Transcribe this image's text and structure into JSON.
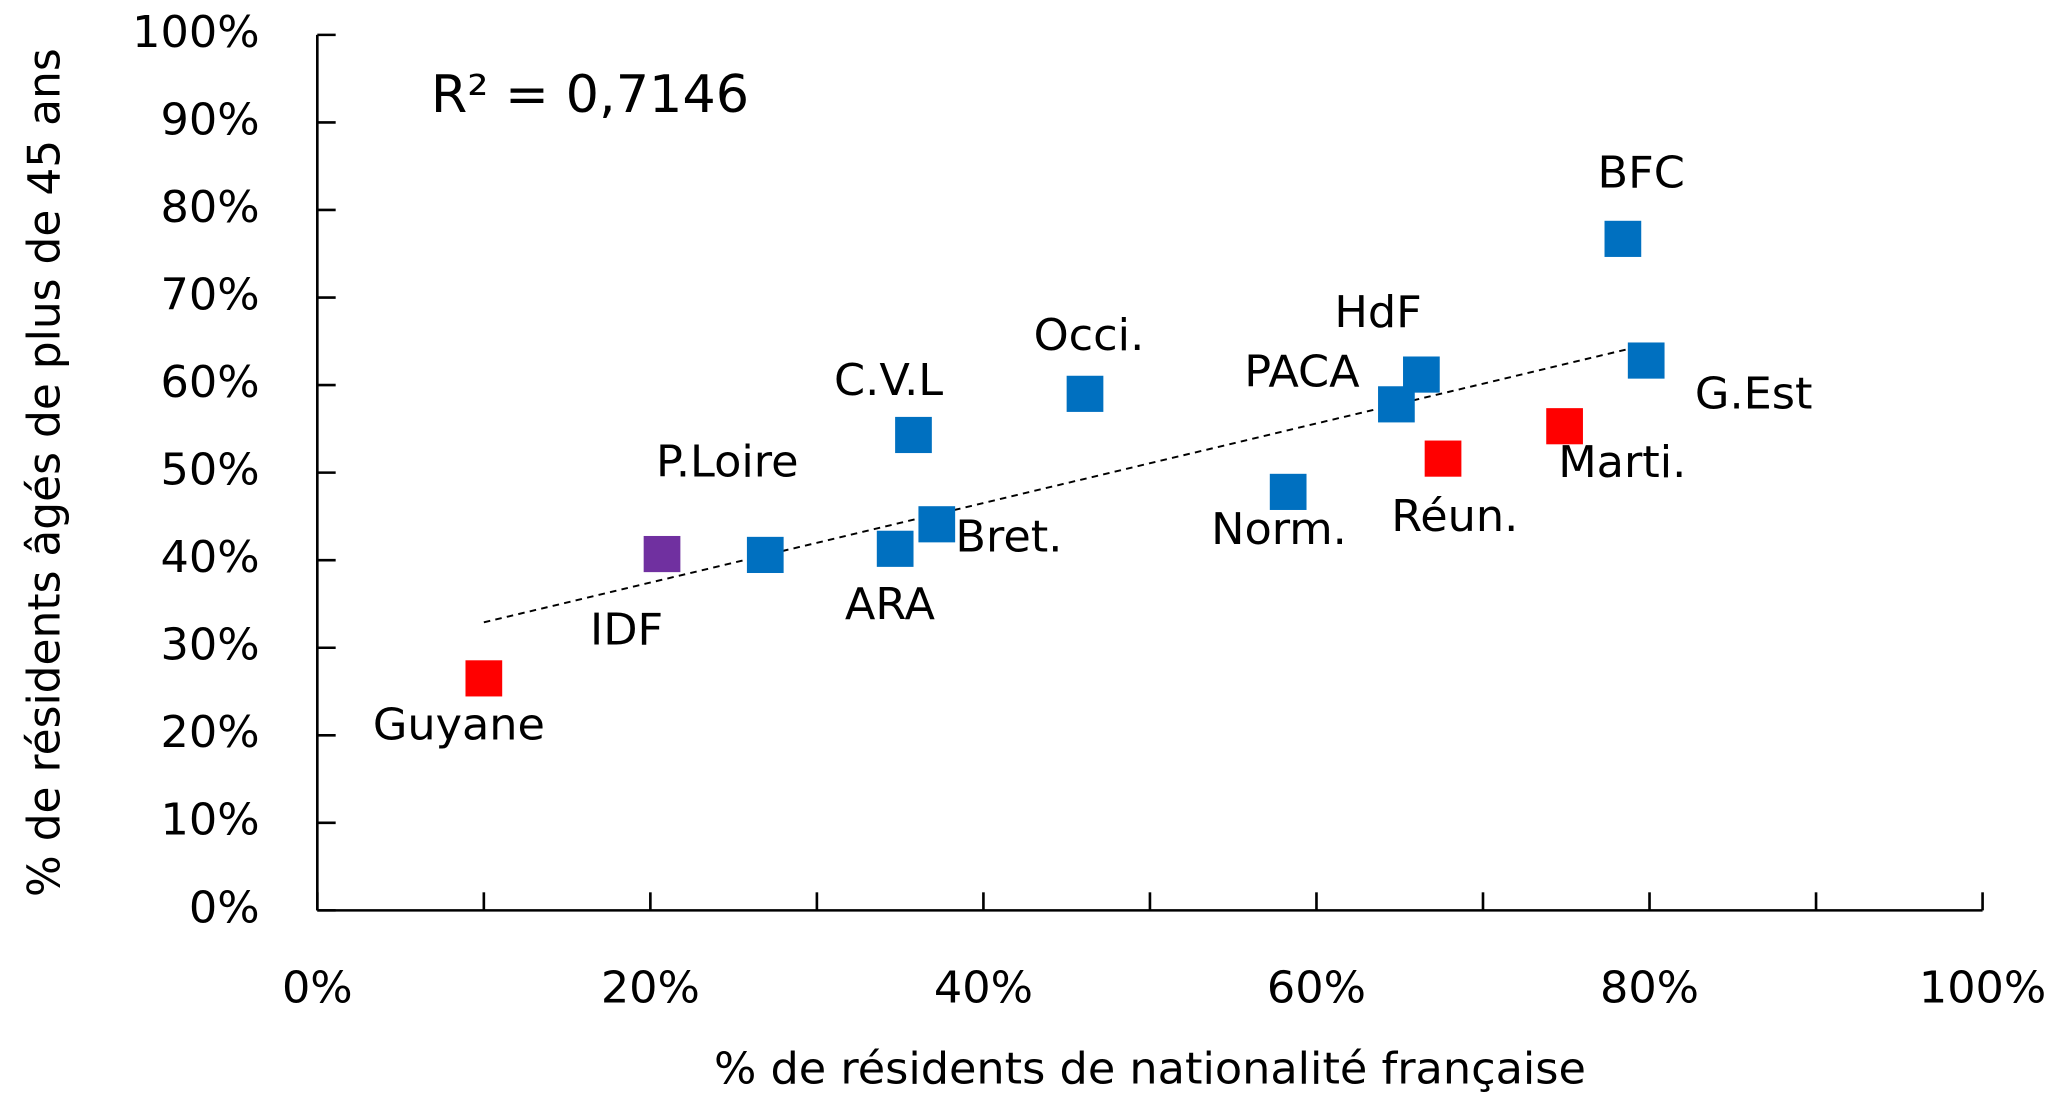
{
  "chart_data": {
    "type": "scatter",
    "x_label": "% de résidents de nationalité française",
    "y_label": "% de résidents âgés de plus de 45 ans",
    "annotation": "R² = 0,7146",
    "xlim": [
      0,
      100
    ],
    "ylim": [
      0,
      100
    ],
    "xticks": [
      {
        "value": 0,
        "label": "0%"
      },
      {
        "value": 20,
        "label": "20%"
      },
      {
        "value": 40,
        "label": "40%"
      },
      {
        "value": 60,
        "label": "60%"
      },
      {
        "value": 80,
        "label": "80%"
      },
      {
        "value": 100,
        "label": "100%"
      }
    ],
    "xminorticks": [
      10,
      30,
      50,
      70,
      90
    ],
    "yticks": [
      {
        "value": 0,
        "label": "0%"
      },
      {
        "value": 10,
        "label": "10%"
      },
      {
        "value": 20,
        "label": "20%"
      },
      {
        "value": 30,
        "label": "30%"
      },
      {
        "value": 40,
        "label": "40%"
      },
      {
        "value": 50,
        "label": "50%"
      },
      {
        "value": 60,
        "label": "60%"
      },
      {
        "value": 70,
        "label": "70%"
      },
      {
        "value": 80,
        "label": "80%"
      },
      {
        "value": 90,
        "label": "90%"
      },
      {
        "value": 100,
        "label": "100%"
      }
    ],
    "trendline": {
      "x": [
        10,
        80
      ],
      "y": [
        32.9,
        64.7
      ]
    },
    "points": [
      {
        "label": "Guyane",
        "x": 10,
        "y": 26.5,
        "color": "#ff0000"
      },
      {
        "label": "IDF",
        "x": 20.7,
        "y": 40.7,
        "color": "#7030a0"
      },
      {
        "label": "P.Loire",
        "x": 26.9,
        "y": 40.6,
        "color": "#0070c0"
      },
      {
        "label": "ARA",
        "x": 34.7,
        "y": 41.3,
        "color": "#0070c0"
      },
      {
        "label": "C.V.L",
        "x": 35.8,
        "y": 54.3,
        "color": "#0070c0"
      },
      {
        "label": "Bret.",
        "x": 37.2,
        "y": 44.1,
        "color": "#0070c0"
      },
      {
        "label": "Occi.",
        "x": 46.1,
        "y": 59.0,
        "color": "#0070c0"
      },
      {
        "label": "Norm.",
        "x": 58.3,
        "y": 47.8,
        "color": "#0070c0"
      },
      {
        "label": "PACA",
        "x": 64.8,
        "y": 57.8,
        "color": "#0070c0"
      },
      {
        "label": "HdF",
        "x": 66.3,
        "y": 61.2,
        "color": "#0070c0"
      },
      {
        "label": "Réun.",
        "x": 67.6,
        "y": 51.6,
        "color": "#ff0000"
      },
      {
        "label": "Marti.",
        "x": 74.9,
        "y": 55.3,
        "color": "#ff0000"
      },
      {
        "label": "BFC",
        "x": 78.4,
        "y": 76.7,
        "color": "#0070c0"
      },
      {
        "label": "G.Est",
        "x": 79.8,
        "y": 62.8,
        "color": "#0070c0"
      }
    ]
  }
}
